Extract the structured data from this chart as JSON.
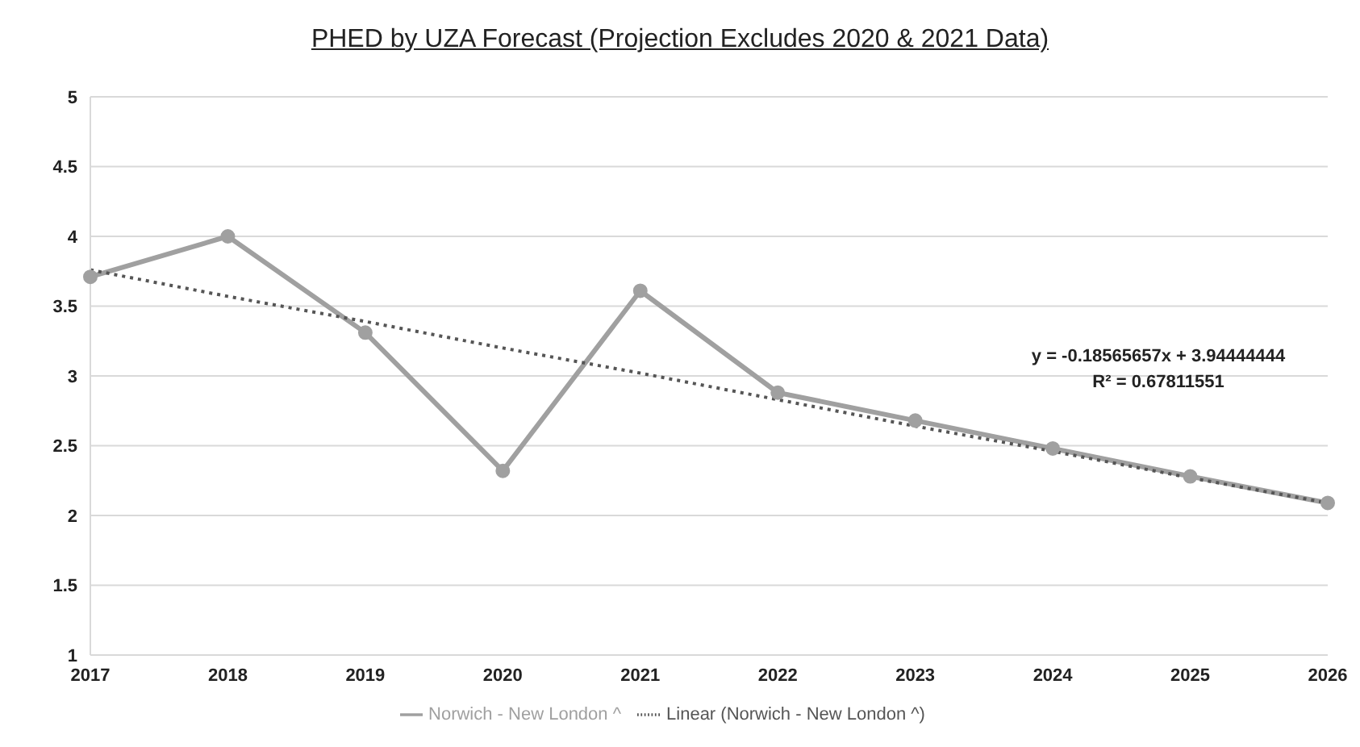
{
  "chart_data": {
    "type": "line",
    "title": "PHED by UZA Forecast (Projection Excludes 2020 & 2021 Data)",
    "categories": [
      "2017",
      "2018",
      "2019",
      "2020",
      "2021",
      "2022",
      "2023",
      "2024",
      "2025",
      "2026"
    ],
    "series": [
      {
        "name": "Norwich - New London ^",
        "color": "#a0a0a0",
        "values": [
          3.71,
          4.0,
          3.31,
          2.32,
          3.61,
          2.88,
          2.68,
          2.48,
          2.28,
          2.09
        ],
        "marker": "circle",
        "line_style": "solid"
      },
      {
        "name": "Linear (Norwich - New London ^)",
        "color": "#555555",
        "values": [
          3.76,
          3.57,
          3.39,
          3.2,
          3.02,
          2.83,
          2.64,
          2.46,
          2.27,
          2.09
        ],
        "marker": "none",
        "line_style": "dotted"
      }
    ],
    "ylim": [
      1,
      5
    ],
    "yticks": [
      1,
      1.5,
      2,
      2.5,
      3,
      3.5,
      4,
      4.5,
      5
    ],
    "grid": "y",
    "legend": "bottom",
    "annotations": [
      "y = -0.18565657x + 3.94444444",
      "R² = 0.67811551"
    ]
  }
}
